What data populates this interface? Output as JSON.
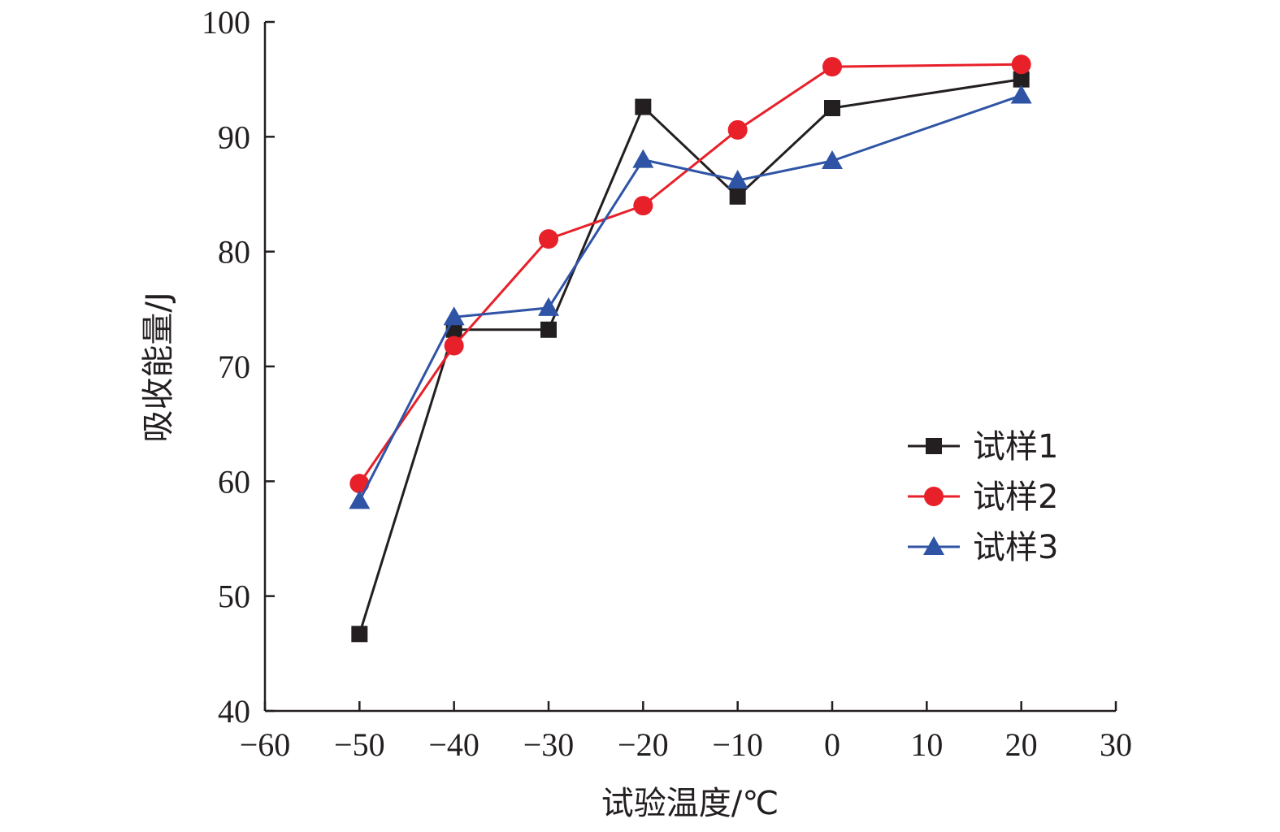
{
  "chart_data": {
    "type": "line",
    "xlabel": "试验温度/℃",
    "ylabel": "吸收能量/J",
    "xlim": [
      -60,
      30
    ],
    "ylim": [
      40,
      100
    ],
    "xticks": [
      -60,
      -50,
      -40,
      -30,
      -20,
      -10,
      0,
      10,
      20,
      30
    ],
    "yticks": [
      40,
      50,
      60,
      70,
      80,
      90,
      100
    ],
    "xtick_labels": [
      "−60",
      "−50",
      "−40",
      "−30",
      "−20",
      "−10",
      "0",
      "10",
      "20",
      "30"
    ],
    "ytick_labels": [
      "40",
      "50",
      "60",
      "70",
      "80",
      "90",
      "100"
    ],
    "grid": false,
    "legend_position": "right",
    "series": [
      {
        "name": "试样1",
        "color": "#231f20",
        "marker": "square",
        "x": [
          -50,
          -40,
          -30,
          -20,
          -10,
          0,
          20
        ],
        "y": [
          46.7,
          73.2,
          73.2,
          92.6,
          84.8,
          92.5,
          95.0
        ]
      },
      {
        "name": "试样2",
        "color": "#e8202a",
        "marker": "circle",
        "x": [
          -50,
          -40,
          -30,
          -20,
          -10,
          0,
          20
        ],
        "y": [
          59.8,
          71.8,
          81.1,
          84.0,
          90.6,
          96.1,
          96.3
        ]
      },
      {
        "name": "试样3",
        "color": "#2f54a5",
        "marker": "triangle",
        "x": [
          -50,
          -40,
          -30,
          -20,
          -10,
          0,
          20
        ],
        "y": [
          58.3,
          74.3,
          75.1,
          88.0,
          86.2,
          87.9,
          93.6
        ]
      }
    ]
  }
}
